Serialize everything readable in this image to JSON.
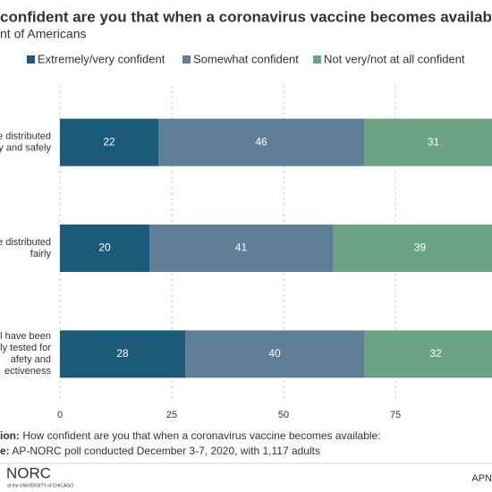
{
  "chart_data": {
    "type": "bar",
    "orientation": "horizontal",
    "stacked": true,
    "title": "confident are you that when a coronavirus vaccine becomes available:",
    "subtitle": "nt of Americans",
    "categories": [
      [
        "e distributed",
        "ly and safely"
      ],
      [
        "e distributed",
        "fairly"
      ],
      [
        "l have been",
        "rly tested for",
        "afety and",
        "ectiveness"
      ]
    ],
    "series": [
      {
        "name": "Extremely/very confident",
        "color": "#1b5a78",
        "values": [
          22,
          20,
          28
        ]
      },
      {
        "name": "Somewhat confident",
        "color": "#5f7f96",
        "values": [
          46,
          41,
          40
        ]
      },
      {
        "name": "Not very/not at all confident",
        "color": "#6ba387",
        "values": [
          31,
          39,
          32
        ]
      }
    ],
    "xlim": [
      0,
      100
    ],
    "xticks": [
      0,
      25,
      50,
      75
    ],
    "grid": true
  },
  "footer": {
    "question_label": "ion:",
    "question": "How confident are you that when a coronavirus vaccine becomes available:",
    "source_label": "e:",
    "source": "AP-NORC poll conducted December 3-7, 2020, with 1,117 adults",
    "logo": "NORC",
    "logo_sub": "at the UNIVERSITY of CHICAGO",
    "credit": "APN"
  }
}
